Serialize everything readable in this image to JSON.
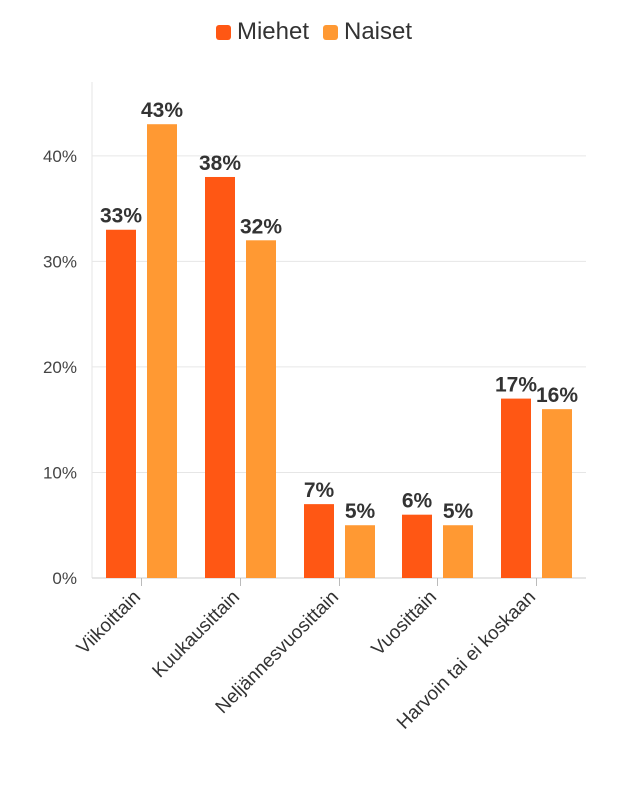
{
  "colors": {
    "miehet": "#ff5714",
    "naiset": "#ff9933",
    "text": "#333333",
    "grid": "#e6e6e6"
  },
  "chart_data": {
    "type": "bar",
    "categories": [
      "Viikoittain",
      "Kuukausittain",
      "Neljännesvuosittain",
      "Vuosittain",
      "Harvoin tai ei koskaan"
    ],
    "series": [
      {
        "name": "Miehet",
        "values": [
          33,
          38,
          7,
          6,
          17
        ],
        "labels": [
          "33%",
          "38%",
          "7%",
          "6%",
          "17%"
        ]
      },
      {
        "name": "Naiset",
        "values": [
          43,
          32,
          5,
          5,
          16
        ],
        "labels": [
          "43%",
          "32%",
          "5%",
          "5%",
          "16%"
        ]
      }
    ],
    "yticks": [
      0,
      10,
      20,
      30,
      40
    ],
    "ytick_labels": [
      "0%",
      "10%",
      "20%",
      "30%",
      "40%"
    ],
    "ylim": [
      0,
      47
    ],
    "grid": true,
    "legend": "top-center",
    "title": "",
    "xlabel": "",
    "ylabel": ""
  }
}
